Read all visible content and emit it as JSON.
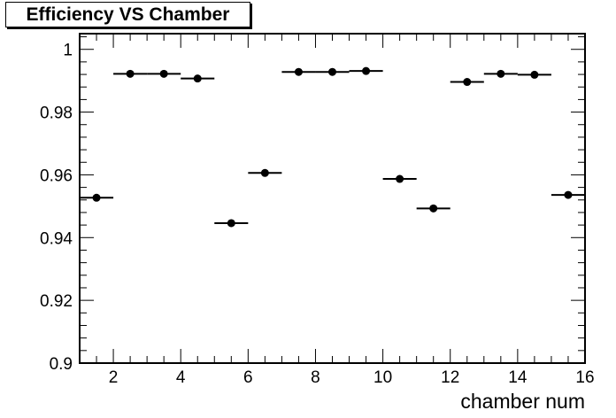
{
  "chart_data": {
    "type": "scatter",
    "title": "Efficiency VS Chamber",
    "xlabel": "chamber num",
    "ylabel": "",
    "xlim": [
      1,
      16
    ],
    "ylim": [
      0.9,
      1.005
    ],
    "x_tick_labels": [
      "2",
      "4",
      "6",
      "8",
      "10",
      "12",
      "14",
      "16"
    ],
    "y_tick_labels": [
      "0.9",
      "0.92",
      "0.94",
      "0.96",
      "0.98",
      "1"
    ],
    "x_error_half_width": 0.5,
    "grid": false,
    "legend": false,
    "marker_color": "#000000",
    "series": [
      {
        "x": [
          1.5,
          2.5,
          3.5,
          4.5,
          5.5,
          6.5,
          7.5,
          8.5,
          9.5,
          10.5,
          11.5,
          12.5,
          13.5,
          14.5,
          15.5
        ],
        "y": [
          0.9527,
          0.9922,
          0.9922,
          0.9907,
          0.9446,
          0.9606,
          0.9928,
          0.9928,
          0.9931,
          0.9587,
          0.9493,
          0.9896,
          0.9922,
          0.9919,
          0.9536
        ]
      }
    ]
  }
}
